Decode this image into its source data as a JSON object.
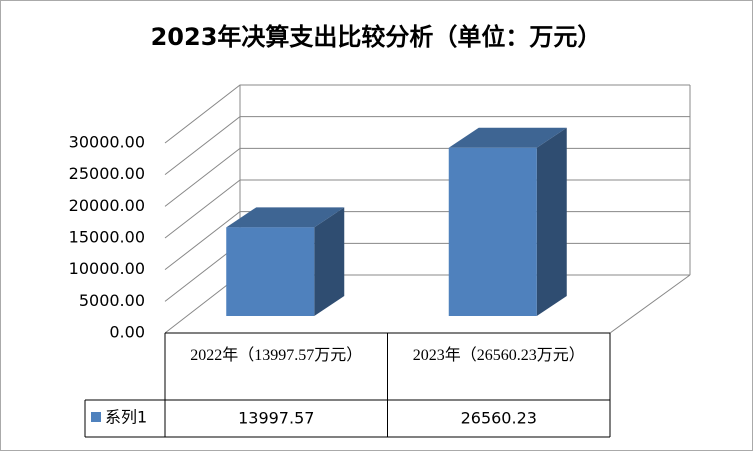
{
  "chart_data": {
    "type": "bar3d",
    "title": "2023年决算支出比较分析（单位：万元）",
    "categories": [
      "2022年（13997.57万元）",
      "2023年（26560.23万元）"
    ],
    "series": [
      {
        "name": "系列1",
        "color": "#4f81bd",
        "values": [
          13997.57,
          26560.23
        ]
      }
    ],
    "ylim": [
      0,
      30000
    ],
    "yticks": [
      {
        "value": 0,
        "label": "0.00"
      },
      {
        "value": 5000,
        "label": "5000.00"
      },
      {
        "value": 10000,
        "label": "10000.00"
      },
      {
        "value": 15000,
        "label": "15000.00"
      },
      {
        "value": 20000,
        "label": "20000.00"
      },
      {
        "value": 25000,
        "label": "25000.00"
      },
      {
        "value": 30000,
        "label": "30000.00"
      }
    ],
    "grid": true,
    "data_table": true
  }
}
